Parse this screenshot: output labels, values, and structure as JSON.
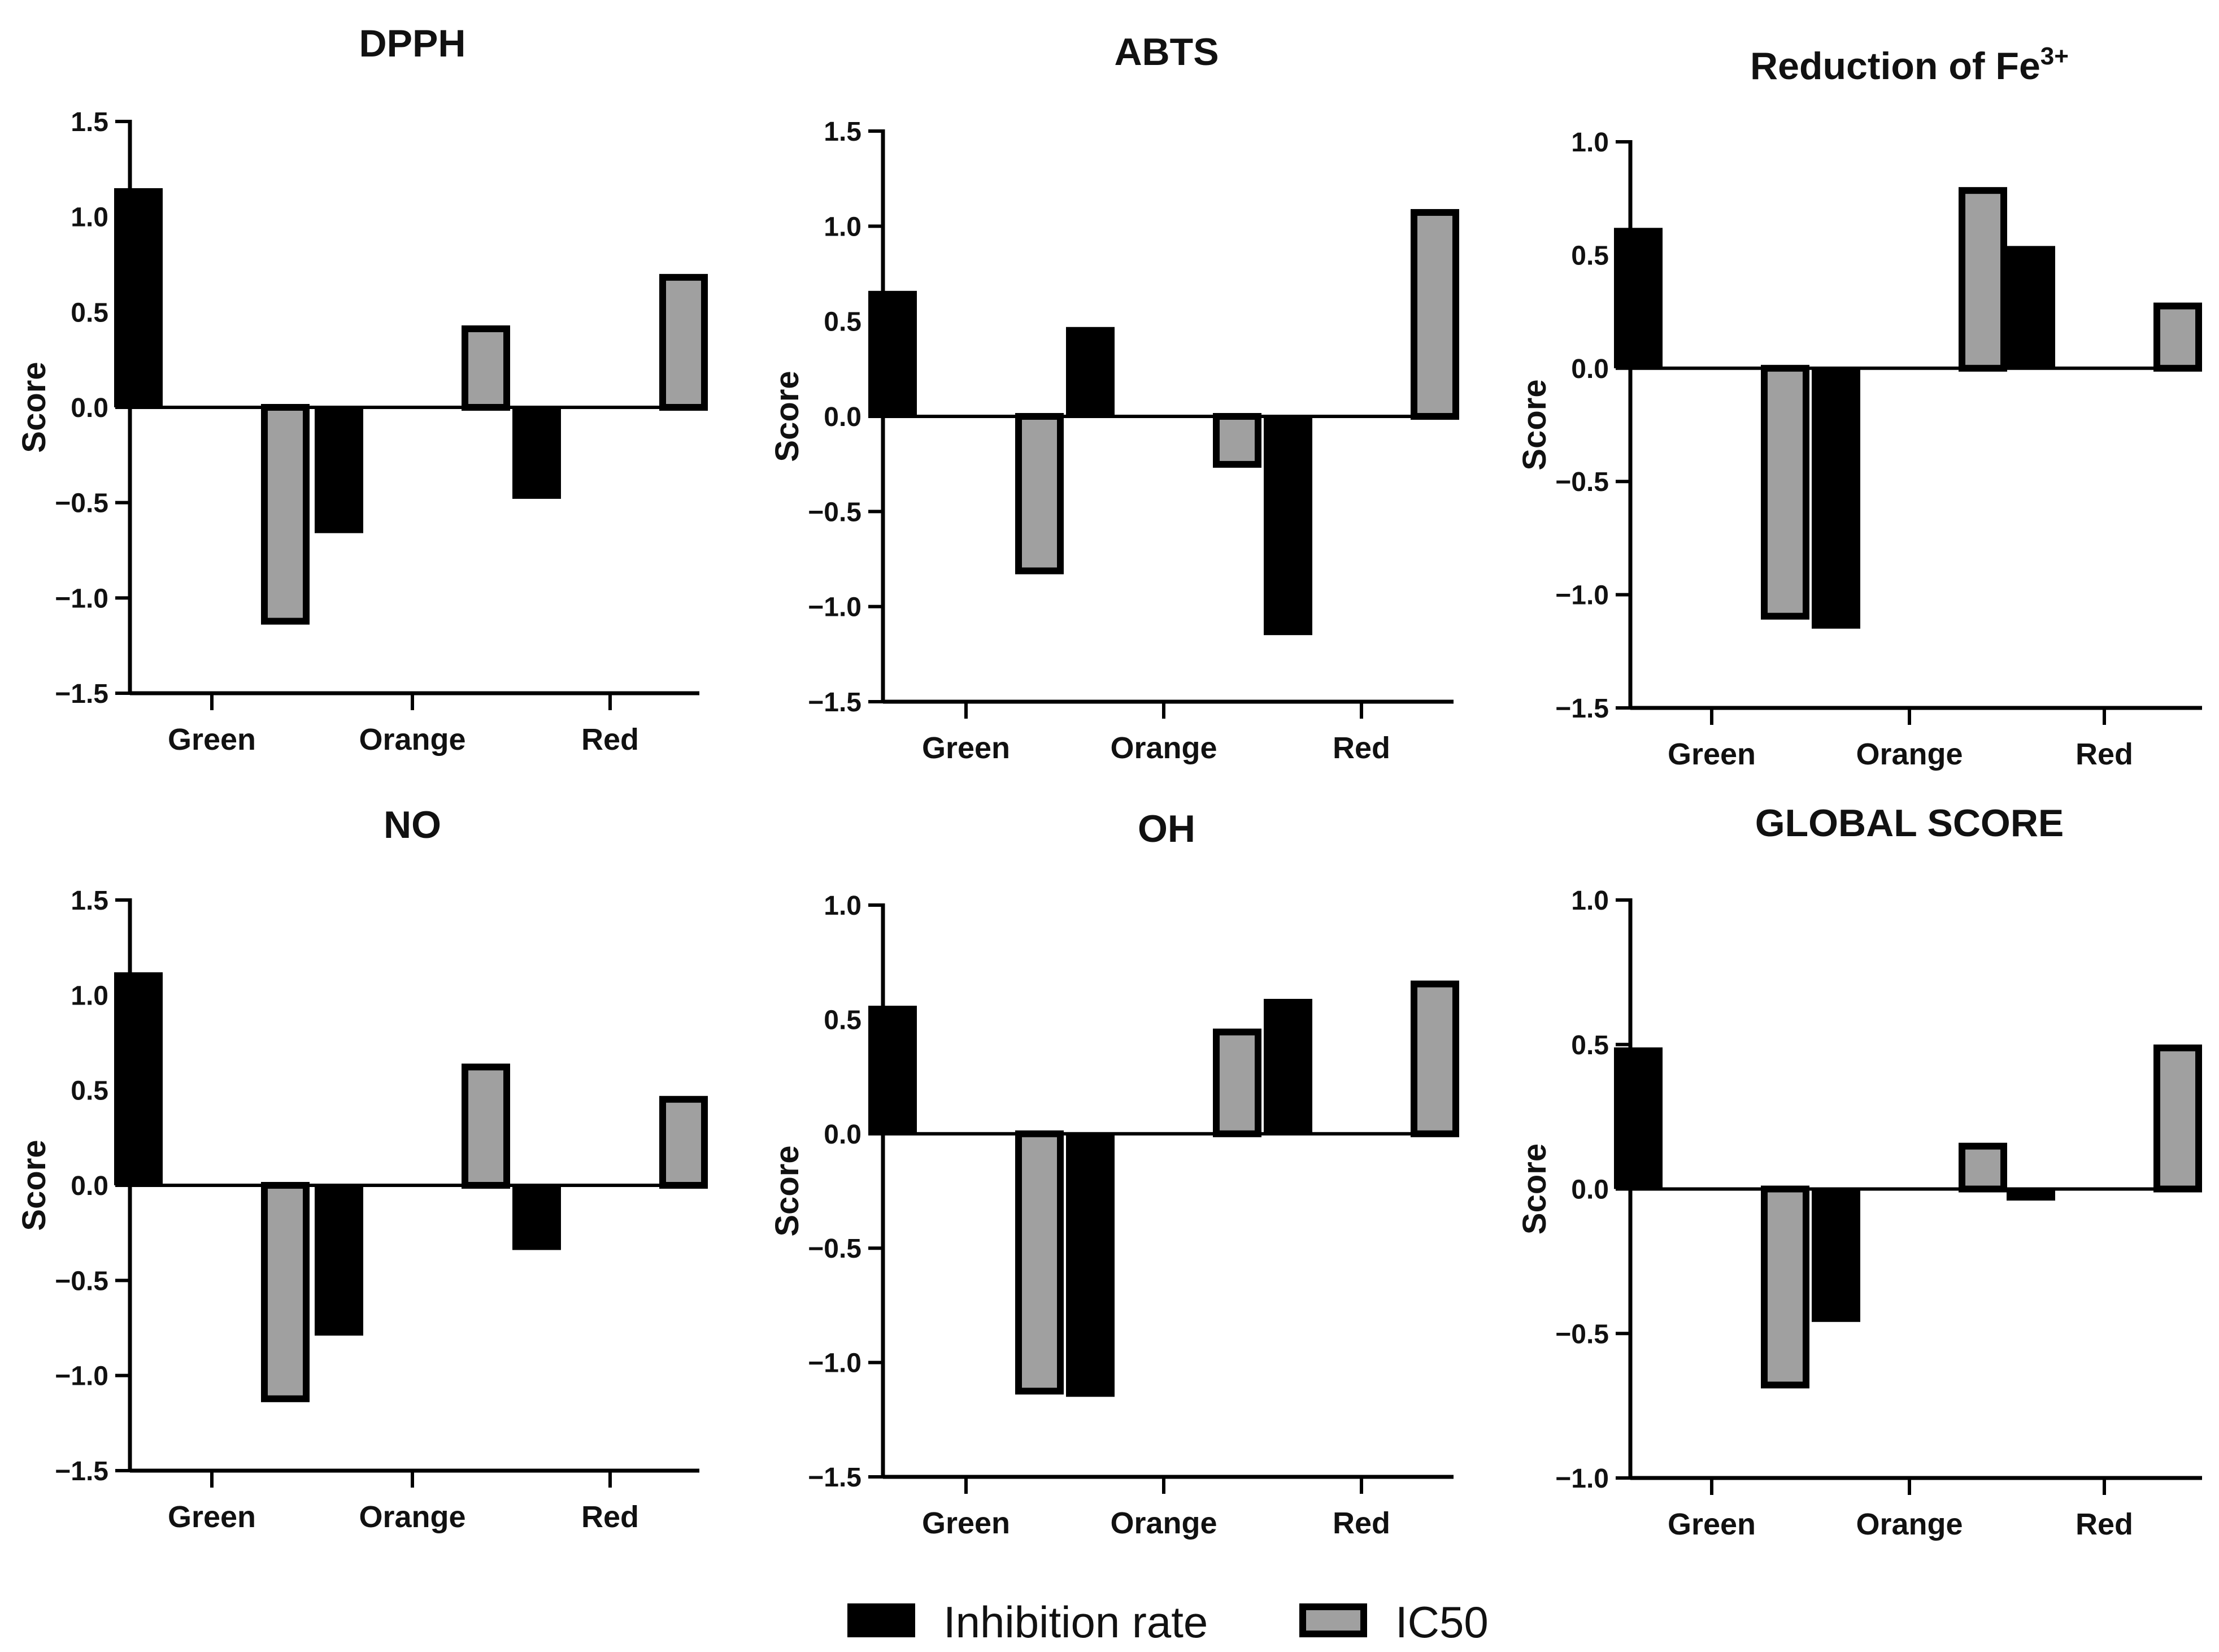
{
  "colors": {
    "inhibition_rate": "#000000",
    "ic50_fill": "#a0a0a0",
    "ic50_outline": "#000000",
    "axis": "#000000",
    "text": "#111111"
  },
  "legend": {
    "inhibition_rate_label": "Inhibition rate",
    "ic50_label": "IC50"
  },
  "chart_data": [
    {
      "type": "bar",
      "title": "DPPH",
      "ylabel": "Score",
      "ylim": [
        -1.5,
        1.5
      ],
      "yticks": [
        -1.5,
        -1.0,
        -0.5,
        0.0,
        0.5,
        1.0,
        1.5
      ],
      "categories": [
        "Green",
        "Orange",
        "Red"
      ],
      "series": [
        {
          "name": "Inhibition rate",
          "values": [
            1.15,
            -0.66,
            -0.48
          ]
        },
        {
          "name": "IC50",
          "values": [
            -1.14,
            0.43,
            0.7
          ]
        }
      ]
    },
    {
      "type": "bar",
      "title": "ABTS",
      "ylabel": "Score",
      "ylim": [
        -1.5,
        1.5
      ],
      "yticks": [
        -1.5,
        -1.0,
        -0.5,
        0.0,
        0.5,
        1.0,
        1.5
      ],
      "categories": [
        "Green",
        "Orange",
        "Red"
      ],
      "series": [
        {
          "name": "Inhibition rate",
          "values": [
            0.66,
            0.47,
            -1.15
          ]
        },
        {
          "name": "IC50",
          "values": [
            -0.83,
            -0.27,
            1.09
          ]
        }
      ]
    },
    {
      "type": "bar",
      "title": "Reduction of Fe",
      "title_superscript": "3+",
      "ylabel": "Score",
      "ylim": [
        -1.5,
        1.0
      ],
      "yticks": [
        -1.5,
        -1.0,
        -0.5,
        0.0,
        0.5,
        1.0
      ],
      "categories": [
        "Green",
        "Orange",
        "Red"
      ],
      "series": [
        {
          "name": "Inhibition rate",
          "values": [
            0.62,
            -1.15,
            0.54
          ]
        },
        {
          "name": "IC50",
          "values": [
            -1.11,
            0.8,
            0.29
          ]
        }
      ]
    },
    {
      "type": "bar",
      "title": "NO",
      "ylabel": "Score",
      "ylim": [
        -1.5,
        1.5
      ],
      "yticks": [
        -1.5,
        -1.0,
        -0.5,
        0.0,
        0.5,
        1.0,
        1.5
      ],
      "categories": [
        "Green",
        "Orange",
        "Red"
      ],
      "series": [
        {
          "name": "Inhibition rate",
          "values": [
            1.12,
            -0.79,
            -0.34
          ]
        },
        {
          "name": "IC50",
          "values": [
            -1.14,
            0.64,
            0.47
          ]
        }
      ]
    },
    {
      "type": "bar",
      "title": "OH",
      "ylabel": "Score",
      "ylim": [
        -1.5,
        1.0
      ],
      "yticks": [
        -1.5,
        -1.0,
        -0.5,
        0.0,
        0.5,
        1.0
      ],
      "categories": [
        "Green",
        "Orange",
        "Red"
      ],
      "series": [
        {
          "name": "Inhibition rate",
          "values": [
            0.56,
            -1.15,
            0.59
          ]
        },
        {
          "name": "IC50",
          "values": [
            -1.14,
            0.46,
            0.67
          ]
        }
      ]
    },
    {
      "type": "bar",
      "title": "GLOBAL SCORE",
      "ylabel": "Score",
      "ylim": [
        -1.0,
        1.0
      ],
      "yticks": [
        -1.0,
        -0.5,
        0.0,
        0.5,
        1.0
      ],
      "categories": [
        "Green",
        "Orange",
        "Red"
      ],
      "series": [
        {
          "name": "Inhibition rate",
          "values": [
            0.49,
            -0.46,
            -0.04
          ]
        },
        {
          "name": "IC50",
          "values": [
            -0.69,
            0.16,
            0.5
          ]
        }
      ]
    }
  ]
}
